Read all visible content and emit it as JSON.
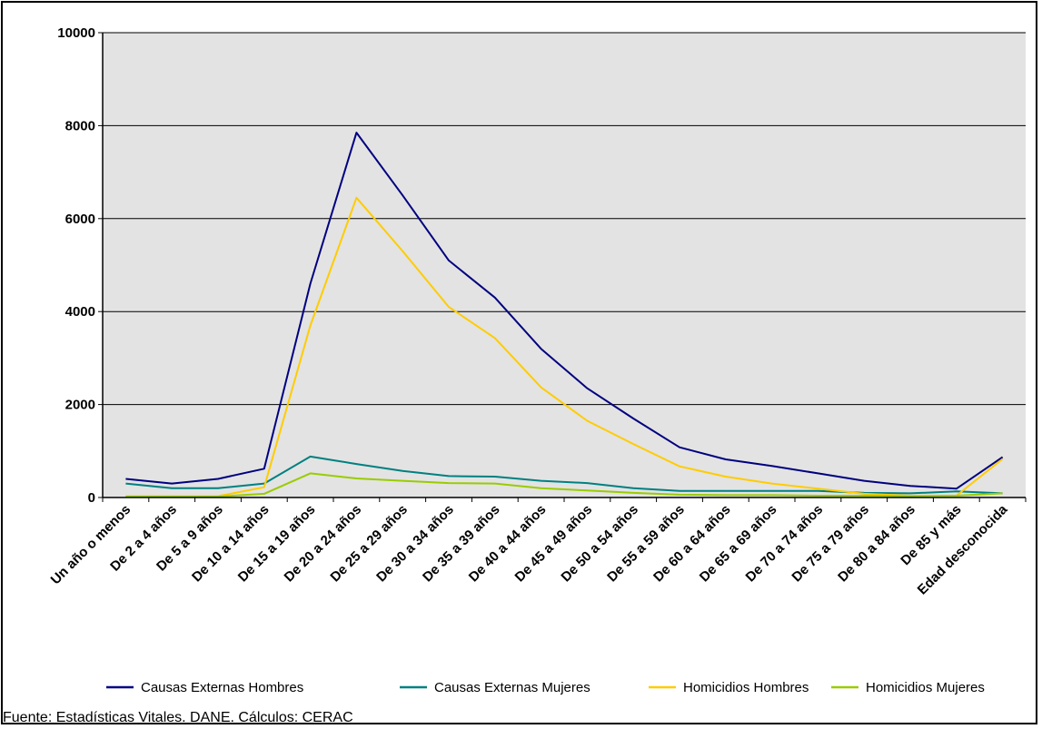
{
  "chart_data": {
    "type": "line",
    "title": "",
    "xlabel": "",
    "ylabel": "",
    "categories": [
      "Un año o menos",
      "De 2 a 4 años",
      "De 5 a 9 años",
      "De 10 a 14 años",
      "De 15 a 19 años",
      "De 20 a 24 años",
      "De 25 a 29 años",
      "De 30 a 34 años",
      "De 35 a 39 años",
      "De 40 a 44 años",
      "De 45 a 49 años",
      "De 50 a 54 años",
      "De 55 a 59 años",
      "De 60 a 64 años",
      "De 65 a 69 años",
      "De 70 a 74 años",
      "De 75 a 79 años",
      "De 80 a 84 años",
      "De 85 y más",
      "Edad desconocida"
    ],
    "ylim": [
      0,
      10000
    ],
    "yticks": [
      "0",
      "2000",
      "4000",
      "6000",
      "8000",
      "10000"
    ],
    "grid": true,
    "legend_position": "bottom",
    "series": [
      {
        "name": "Causas Externas Hombres",
        "color": "#000080",
        "values": [
          400,
          300,
          400,
          620,
          4600,
          7850,
          6500,
          5100,
          4300,
          3200,
          2350,
          1700,
          1080,
          820,
          680,
          520,
          360,
          250,
          190,
          870
        ]
      },
      {
        "name": "Causas Externas Mujeres",
        "color": "#008080",
        "values": [
          300,
          200,
          200,
          300,
          880,
          720,
          570,
          460,
          450,
          360,
          310,
          200,
          140,
          140,
          140,
          140,
          100,
          90,
          130,
          90
        ]
      },
      {
        "name": "Homicidios Hombres",
        "color": "#FFCC00",
        "values": [
          30,
          30,
          30,
          220,
          3700,
          6450,
          5300,
          4100,
          3430,
          2370,
          1650,
          1150,
          670,
          450,
          300,
          190,
          80,
          40,
          40,
          830
        ]
      },
      {
        "name": "Homicidios Mujeres",
        "color": "#99CC00",
        "values": [
          20,
          20,
          20,
          80,
          520,
          410,
          360,
          310,
          300,
          200,
          150,
          100,
          60,
          50,
          50,
          40,
          40,
          30,
          40,
          90
        ]
      }
    ]
  },
  "source_note": "Fuente: Estadísticas Vitales. DANE. Cálculos: CERAC"
}
